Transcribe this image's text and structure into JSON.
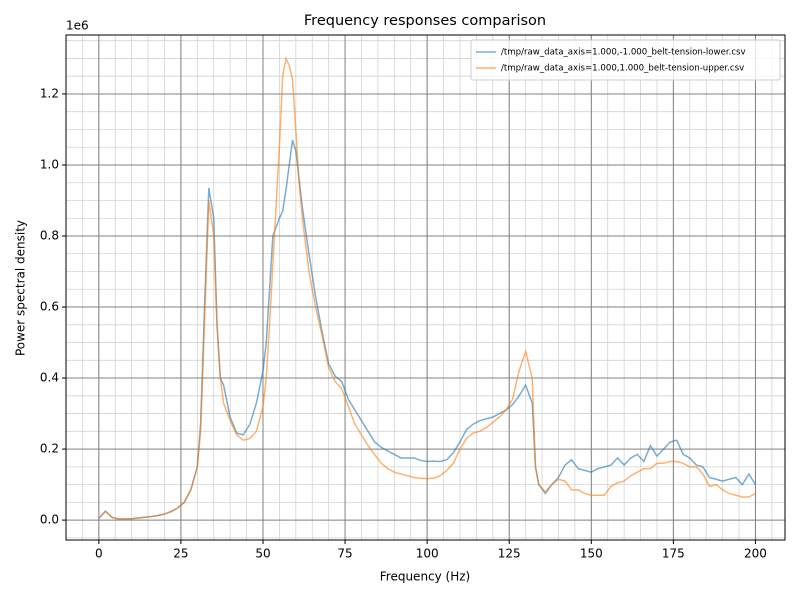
{
  "chart_data": {
    "type": "line",
    "title": "Frequency responses comparison",
    "xlabel": "Frequency (Hz)",
    "ylabel": "Power spectral density",
    "y_offset_text": "1e6",
    "x": [
      0,
      2,
      4,
      6,
      8,
      10,
      12,
      14,
      16,
      18,
      20,
      22,
      24,
      26,
      28,
      30,
      31,
      32,
      33.5,
      35,
      36,
      37,
      38,
      40,
      42,
      44,
      46,
      48,
      50,
      51,
      52,
      53,
      55,
      56,
      57,
      58,
      59,
      60,
      61,
      62,
      64,
      66,
      68,
      70,
      72,
      74,
      76,
      78,
      80,
      82,
      84,
      86,
      88,
      90,
      92,
      94,
      96,
      98,
      100,
      102,
      104,
      106,
      108,
      110,
      112,
      114,
      116,
      118,
      120,
      122,
      124,
      126,
      128,
      130,
      132,
      133,
      134,
      136,
      138,
      140,
      142,
      144,
      146,
      148,
      150,
      152,
      154,
      156,
      158,
      160,
      162,
      164,
      166,
      168,
      170,
      172,
      174,
      176,
      178,
      180,
      182,
      184,
      186,
      188,
      190,
      192,
      194,
      196,
      198,
      200
    ],
    "series": [
      {
        "name": "/tmp/raw_data_axis=1.000,-1.000_belt-tension-lower.csv",
        "color": "#1f77b4",
        "values": [
          0.005,
          0.025,
          0.008,
          0.003,
          0.003,
          0.004,
          0.006,
          0.008,
          0.01,
          0.013,
          0.017,
          0.024,
          0.034,
          0.05,
          0.085,
          0.15,
          0.27,
          0.55,
          0.935,
          0.85,
          0.55,
          0.4,
          0.38,
          0.29,
          0.245,
          0.24,
          0.27,
          0.33,
          0.42,
          0.5,
          0.65,
          0.8,
          0.85,
          0.87,
          0.93,
          1.0,
          1.07,
          1.04,
          0.96,
          0.88,
          0.75,
          0.63,
          0.53,
          0.44,
          0.405,
          0.39,
          0.34,
          0.31,
          0.28,
          0.25,
          0.22,
          0.205,
          0.195,
          0.185,
          0.175,
          0.175,
          0.175,
          0.168,
          0.165,
          0.166,
          0.165,
          0.17,
          0.19,
          0.22,
          0.255,
          0.27,
          0.28,
          0.285,
          0.29,
          0.3,
          0.31,
          0.325,
          0.35,
          0.38,
          0.33,
          0.15,
          0.1,
          0.075,
          0.1,
          0.12,
          0.155,
          0.17,
          0.145,
          0.14,
          0.135,
          0.145,
          0.15,
          0.155,
          0.175,
          0.155,
          0.175,
          0.185,
          0.165,
          0.21,
          0.18,
          0.2,
          0.22,
          0.225,
          0.185,
          0.175,
          0.155,
          0.15,
          0.12,
          0.115,
          0.11,
          0.115,
          0.12,
          0.1,
          0.13,
          0.1
        ]
      },
      {
        "name": "/tmp/raw_data_axis=1.000,1.000_belt-tension-upper.csv",
        "color": "#ff7f0e",
        "values": [
          0.005,
          0.025,
          0.008,
          0.003,
          0.003,
          0.004,
          0.006,
          0.008,
          0.01,
          0.013,
          0.017,
          0.024,
          0.034,
          0.05,
          0.085,
          0.15,
          0.25,
          0.5,
          0.9,
          0.8,
          0.55,
          0.4,
          0.33,
          0.28,
          0.24,
          0.225,
          0.23,
          0.25,
          0.32,
          0.4,
          0.55,
          0.72,
          1.05,
          1.25,
          1.3,
          1.28,
          1.24,
          1.1,
          0.95,
          0.85,
          0.7,
          0.6,
          0.52,
          0.43,
          0.39,
          0.37,
          0.32,
          0.27,
          0.24,
          0.21,
          0.185,
          0.16,
          0.145,
          0.135,
          0.13,
          0.125,
          0.12,
          0.118,
          0.117,
          0.118,
          0.125,
          0.14,
          0.16,
          0.2,
          0.23,
          0.245,
          0.25,
          0.26,
          0.275,
          0.29,
          0.31,
          0.34,
          0.42,
          0.475,
          0.4,
          0.15,
          0.1,
          0.08,
          0.1,
          0.115,
          0.11,
          0.085,
          0.085,
          0.075,
          0.07,
          0.07,
          0.07,
          0.095,
          0.105,
          0.11,
          0.125,
          0.135,
          0.145,
          0.145,
          0.16,
          0.16,
          0.165,
          0.165,
          0.16,
          0.15,
          0.15,
          0.13,
          0.095,
          0.1,
          0.085,
          0.075,
          0.07,
          0.065,
          0.065,
          0.075
        ]
      }
    ],
    "xlim": [
      -10,
      209
    ],
    "ylim": [
      -0.056,
      1.366
    ],
    "xticks": [
      0,
      25,
      50,
      75,
      100,
      125,
      150,
      175,
      200
    ],
    "yticks": [
      {
        "value": 0,
        "label": "0.0"
      },
      0.2,
      0.4,
      0.6,
      0.8,
      {
        "value": 1,
        "label": "1.0"
      },
      1.2
    ],
    "grid": true,
    "minor_grid": {
      "x": 5,
      "y": 0.05
    },
    "legend": "upper right",
    "line_alpha": 0.6
  }
}
